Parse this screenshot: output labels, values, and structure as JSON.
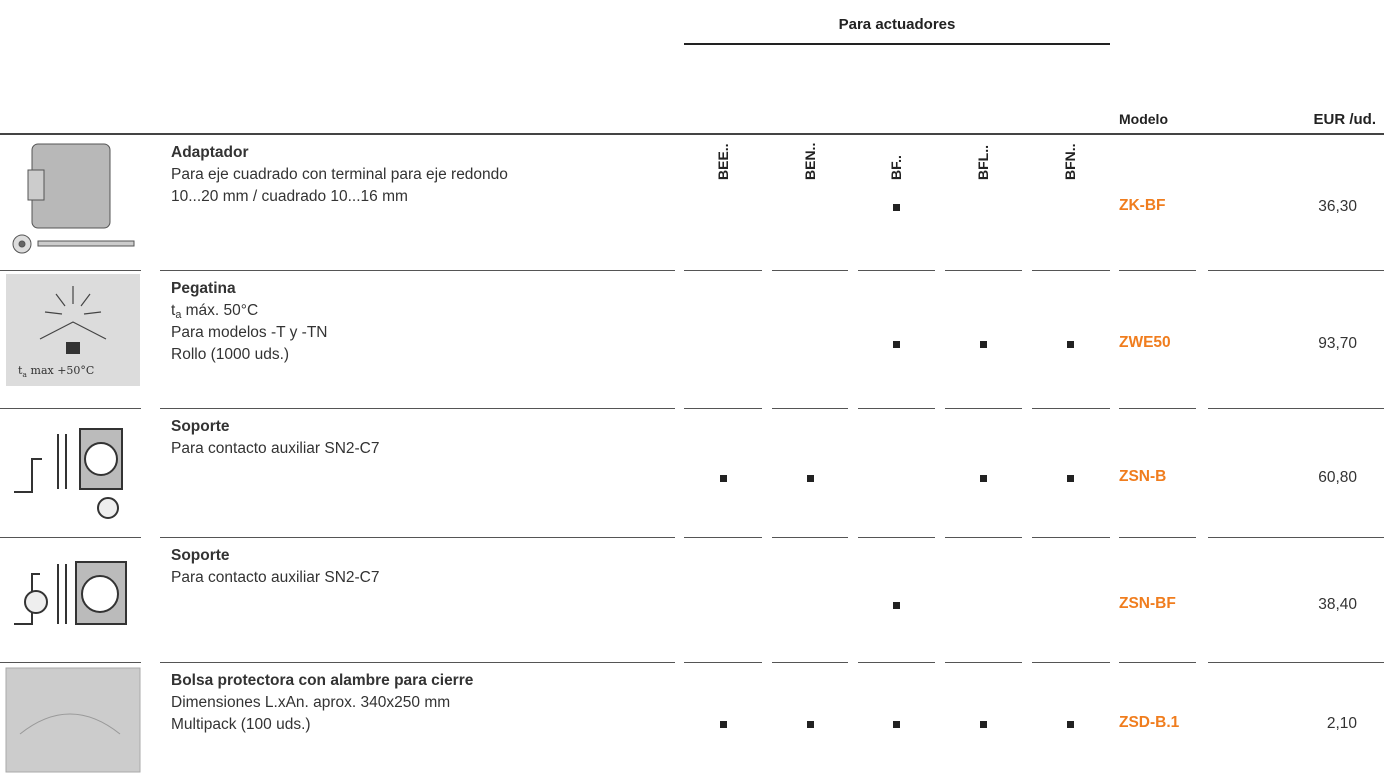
{
  "header": {
    "group": "Para actuadores",
    "columns": [
      "BEE..",
      "BEN..",
      "BF..",
      "BFL..",
      "BFN.."
    ],
    "model": "Modelo",
    "price": "EUR /ud."
  },
  "rows": [
    {
      "title": "Adaptador",
      "lines": [
        "Para eje cuadrado con terminal para eje redondo",
        "10...20 mm / cuadrado 10...16 mm"
      ],
      "marks": [
        false,
        false,
        true,
        false,
        false
      ],
      "model": "ZK-BF",
      "price": "36,30"
    },
    {
      "title": "Pegatina",
      "lines": [
        {
          "segments": [
            {
              "text": "t"
            },
            {
              "text": "a",
              "sub": true
            },
            {
              "text": " máx. 50°C"
            }
          ]
        },
        "Para modelos -T y -TN",
        "Rollo (1000 uds.)"
      ],
      "marks": [
        false,
        false,
        true,
        true,
        true
      ],
      "model": "ZWE50",
      "price": "93,70",
      "image_text": {
        "segments": [
          {
            "text": "t"
          },
          {
            "text": "a",
            "sub": true
          },
          {
            "text": " max +50°C"
          }
        ]
      }
    },
    {
      "title": "Soporte",
      "lines": [
        "Para contacto auxiliar SN2-C7"
      ],
      "marks": [
        true,
        true,
        false,
        true,
        true
      ],
      "model": "ZSN-B",
      "price": "60,80"
    },
    {
      "title": "Soporte",
      "lines": [
        "Para contacto auxiliar SN2-C7"
      ],
      "marks": [
        false,
        false,
        true,
        false,
        false
      ],
      "model": "ZSN-BF",
      "price": "38,40"
    },
    {
      "title": "Bolsa protectora con alambre para cierre",
      "lines": [
        "Dimensiones L.xAn. aprox. 340x250 mm",
        "Multipack (100 uds.)"
      ],
      "marks": [
        true,
        true,
        true,
        true,
        true
      ],
      "model": "ZSD-B.1",
      "price": "2,10"
    }
  ]
}
